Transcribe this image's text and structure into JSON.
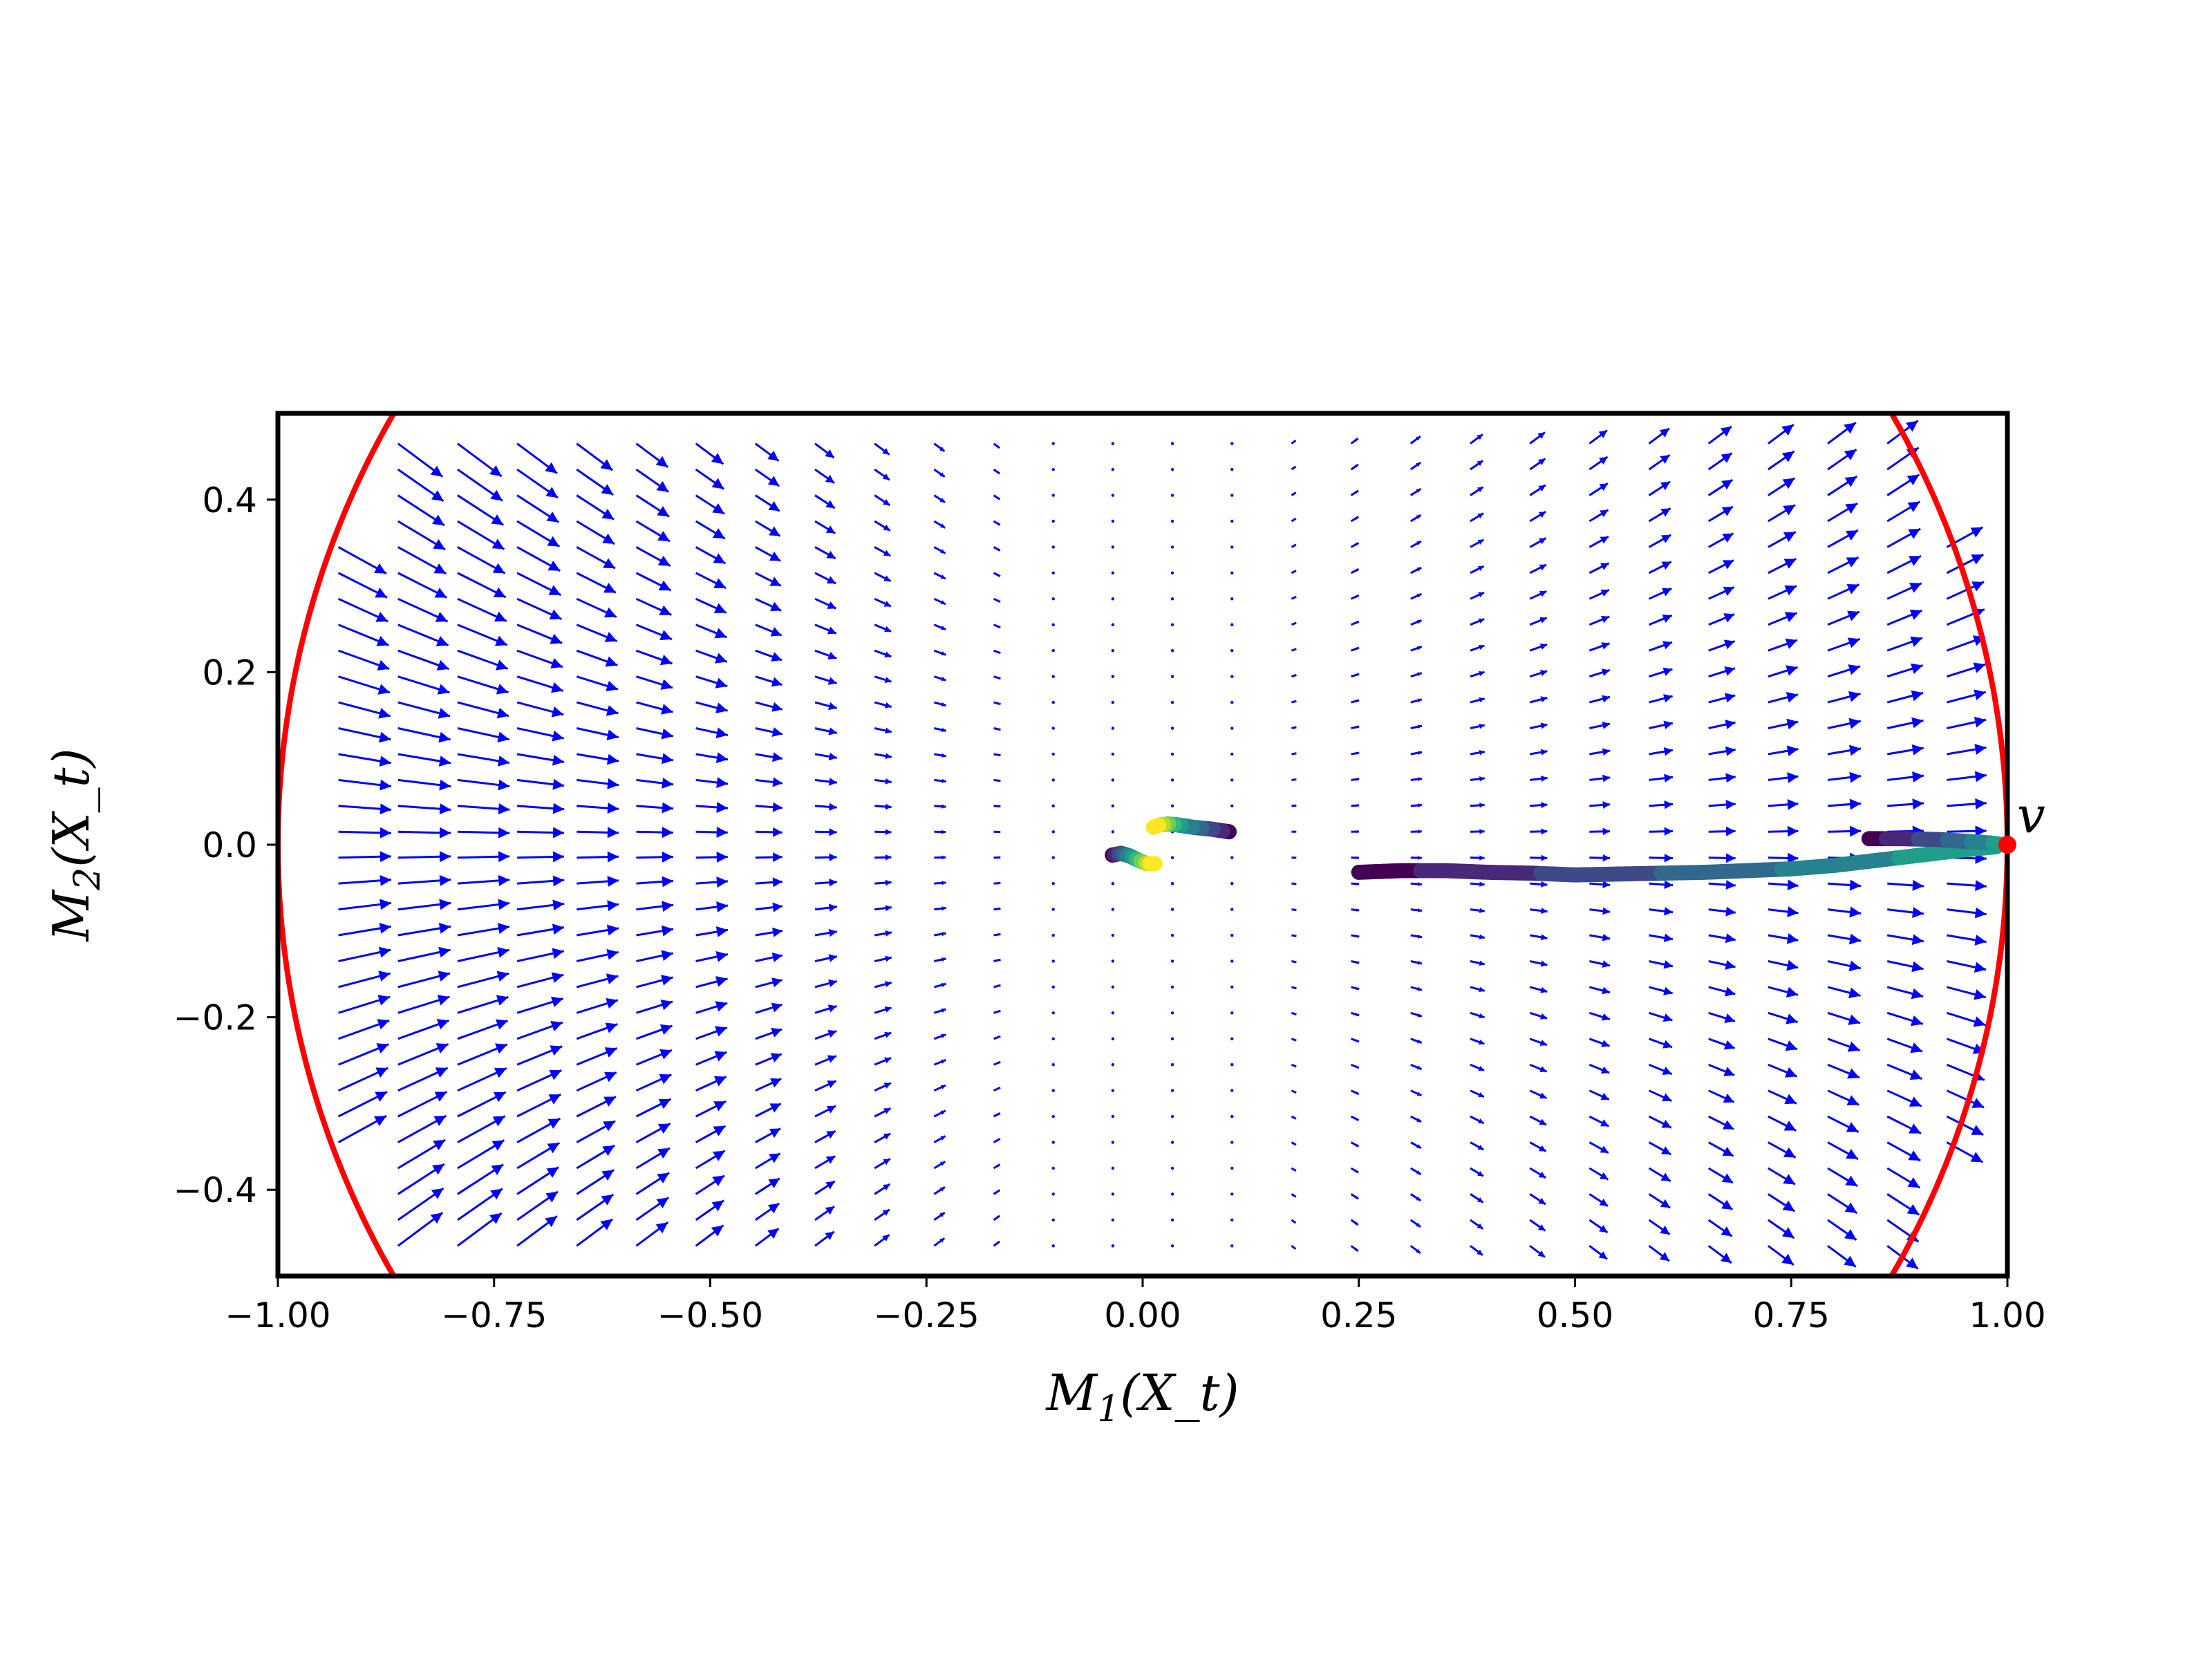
{
  "chart_data": {
    "type": "scatter",
    "title": "",
    "xlabel": "M_1(X_t)",
    "ylabel": "M_2(X_t)",
    "xlim": [
      -1.0,
      1.0
    ],
    "ylim": [
      -0.5,
      0.5
    ],
    "grid": false,
    "x_ticks": [
      "−1.00",
      "−0.75",
      "−0.50",
      "−0.25",
      "0.00",
      "0.25",
      "0.50",
      "0.75",
      "1.00"
    ],
    "x_tick_values": [
      -1.0,
      -0.75,
      -0.5,
      -0.25,
      0.0,
      0.25,
      0.5,
      0.75,
      1.0
    ],
    "y_ticks": [
      "−0.4",
      "−0.2",
      "0.0",
      "0.2",
      "0.4"
    ],
    "y_tick_values": [
      -0.4,
      -0.2,
      0.0,
      0.2,
      0.4
    ],
    "boundary": {
      "type": "unit-circle",
      "color": "#ff0000"
    },
    "vector_field": {
      "color": "#0000ff",
      "x_range": [
        -0.93,
        0.93
      ],
      "y_range": [
        -0.465,
        0.465
      ],
      "nx": 28,
      "ny": 32,
      "description": "flow from left half rightward/outward, vanishing near M1=-0.1 to 0.1"
    },
    "annotations": [
      {
        "text": "v",
        "x": 1.0,
        "y": 0.0,
        "marker_color": "#ff0000"
      }
    ],
    "trajectories": [
      {
        "colormap": "viridis",
        "points": [
          [
            0.25,
            -0.032
          ],
          [
            0.3,
            -0.03
          ],
          [
            0.35,
            -0.03
          ],
          [
            0.4,
            -0.032
          ],
          [
            0.45,
            -0.033
          ],
          [
            0.5,
            -0.035
          ],
          [
            0.55,
            -0.034
          ],
          [
            0.6,
            -0.033
          ],
          [
            0.65,
            -0.032
          ],
          [
            0.7,
            -0.03
          ],
          [
            0.75,
            -0.028
          ],
          [
            0.8,
            -0.024
          ],
          [
            0.85,
            -0.018
          ],
          [
            0.9,
            -0.012
          ],
          [
            0.95,
            -0.006
          ],
          [
            0.99,
            -0.002
          ]
        ]
      },
      {
        "colormap": "viridis",
        "points": [
          [
            0.84,
            0.007
          ],
          [
            0.88,
            0.007
          ],
          [
            0.92,
            0.006
          ],
          [
            0.95,
            0.004
          ],
          [
            0.98,
            0.002
          ],
          [
            0.995,
            0.0
          ]
        ]
      },
      {
        "colormap": "viridis",
        "points": [
          [
            0.1,
            0.015
          ],
          [
            0.08,
            0.018
          ],
          [
            0.06,
            0.02
          ],
          [
            0.04,
            0.023
          ],
          [
            0.03,
            0.024
          ],
          [
            0.02,
            0.023
          ],
          [
            0.012,
            0.02
          ]
        ]
      },
      {
        "colormap": "viridis",
        "points": [
          [
            -0.035,
            -0.012
          ],
          [
            -0.025,
            -0.01
          ],
          [
            -0.015,
            -0.013
          ],
          [
            -0.005,
            -0.018
          ],
          [
            0.005,
            -0.022
          ],
          [
            0.015,
            -0.022
          ]
        ]
      }
    ]
  }
}
